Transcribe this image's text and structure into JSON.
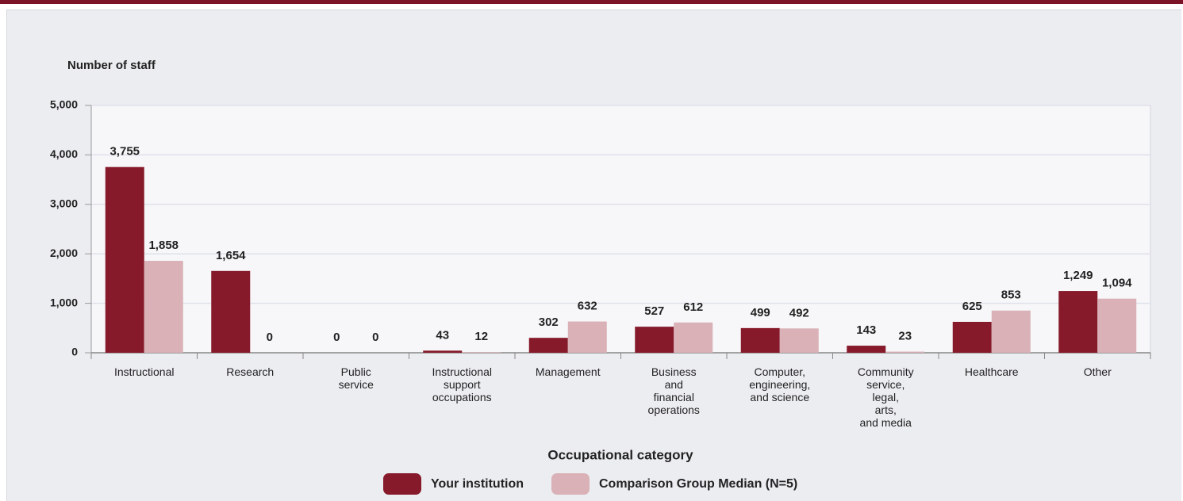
{
  "chart_data": {
    "type": "bar",
    "y_label": "Number of staff",
    "x_label": "Occupational category",
    "categories": [
      "Instructional",
      "Research",
      "Public\nservice",
      "Instructional\nsupport\noccupations",
      "Management",
      "Business\nand\nfinancial\noperations",
      "Computer,\nengineering,\nand science",
      "Community\nservice,\nlegal,\narts,\nand media",
      "Healthcare",
      "Other"
    ],
    "series": [
      {
        "name": "Your institution",
        "color": "#861a2b",
        "values": [
          3755,
          1654,
          0,
          43,
          302,
          527,
          499,
          143,
          625,
          1249
        ],
        "value_labels": [
          "3,755",
          "1,654",
          "0",
          "43",
          "302",
          "527",
          "499",
          "143",
          "625",
          "1,249"
        ]
      },
      {
        "name": "Comparison Group Median (N=5)",
        "color": "#d9b1b6",
        "values": [
          1858,
          0,
          0,
          12,
          632,
          612,
          492,
          23,
          853,
          1094
        ],
        "value_labels": [
          "1,858",
          "0",
          "0",
          "12",
          "632",
          "612",
          "492",
          "23",
          "853",
          "1,094"
        ]
      }
    ],
    "ylim": [
      0,
      5000
    ],
    "yticks": [
      0,
      {
        "value": 1000,
        "label": "1,000"
      },
      {
        "value": 2000,
        "label": "2,000"
      },
      {
        "value": 3000,
        "label": "3,000"
      },
      {
        "value": 4000,
        "label": "4,000"
      },
      {
        "value": 5000,
        "label": "5,000"
      }
    ],
    "grid": true,
    "legend": "bottom"
  }
}
